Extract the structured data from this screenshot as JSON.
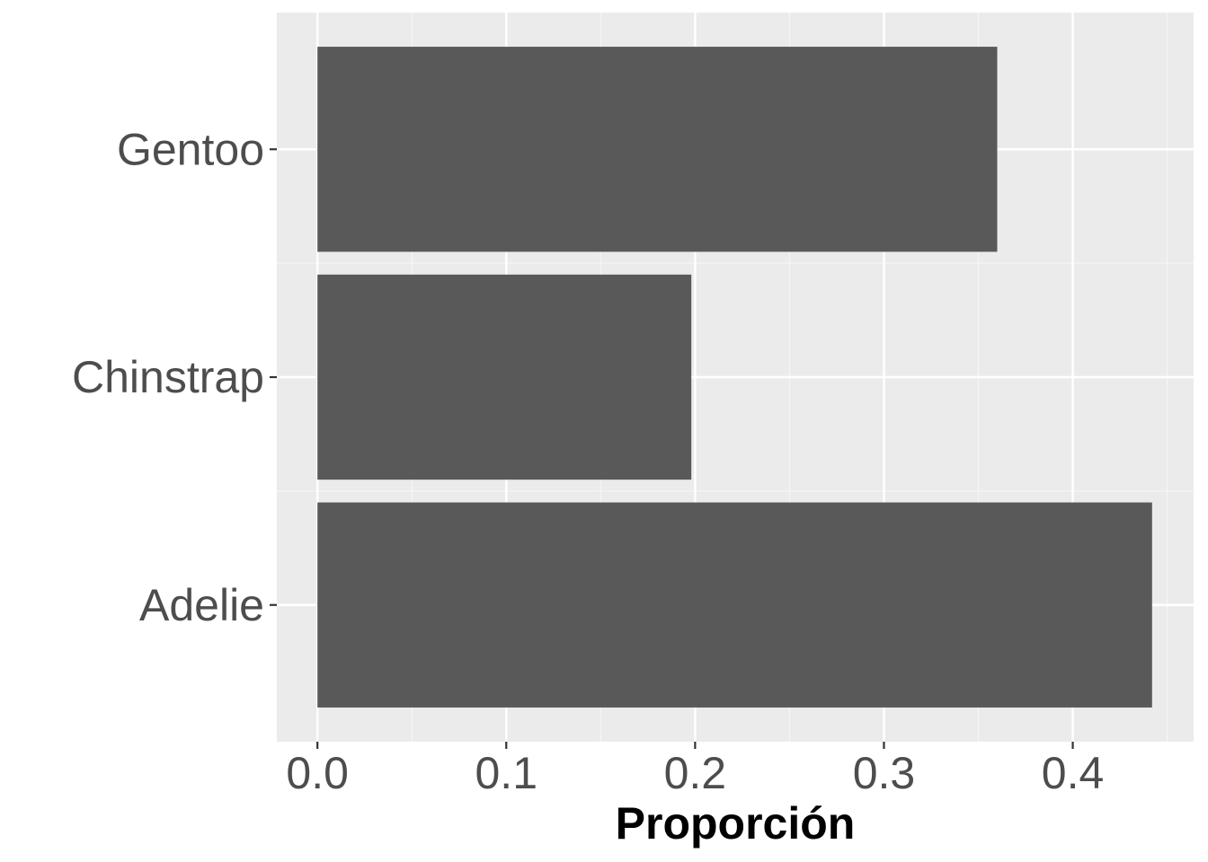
{
  "chart_data": {
    "type": "bar",
    "orientation": "horizontal",
    "categories": [
      "Adelie",
      "Chinstrap",
      "Gentoo"
    ],
    "values": [
      0.442,
      0.198,
      0.36
    ],
    "xlabel": "Proporción",
    "ylabel": "",
    "xlim": [
      -0.0215,
      0.464
    ],
    "x_ticks": [
      0.0,
      0.1,
      0.2,
      0.3,
      0.4
    ],
    "x_tick_labels": [
      "0.0",
      "0.1",
      "0.2",
      "0.3",
      "0.4"
    ],
    "grid": true,
    "legend": "none",
    "colors": {
      "panel_background": "#ebebeb",
      "grid_major": "#ffffff",
      "grid_minor": "#f5f5f5",
      "bar_fill": "#595959",
      "tick_label": "#4d4d4d",
      "axis_title": "#000000"
    }
  }
}
